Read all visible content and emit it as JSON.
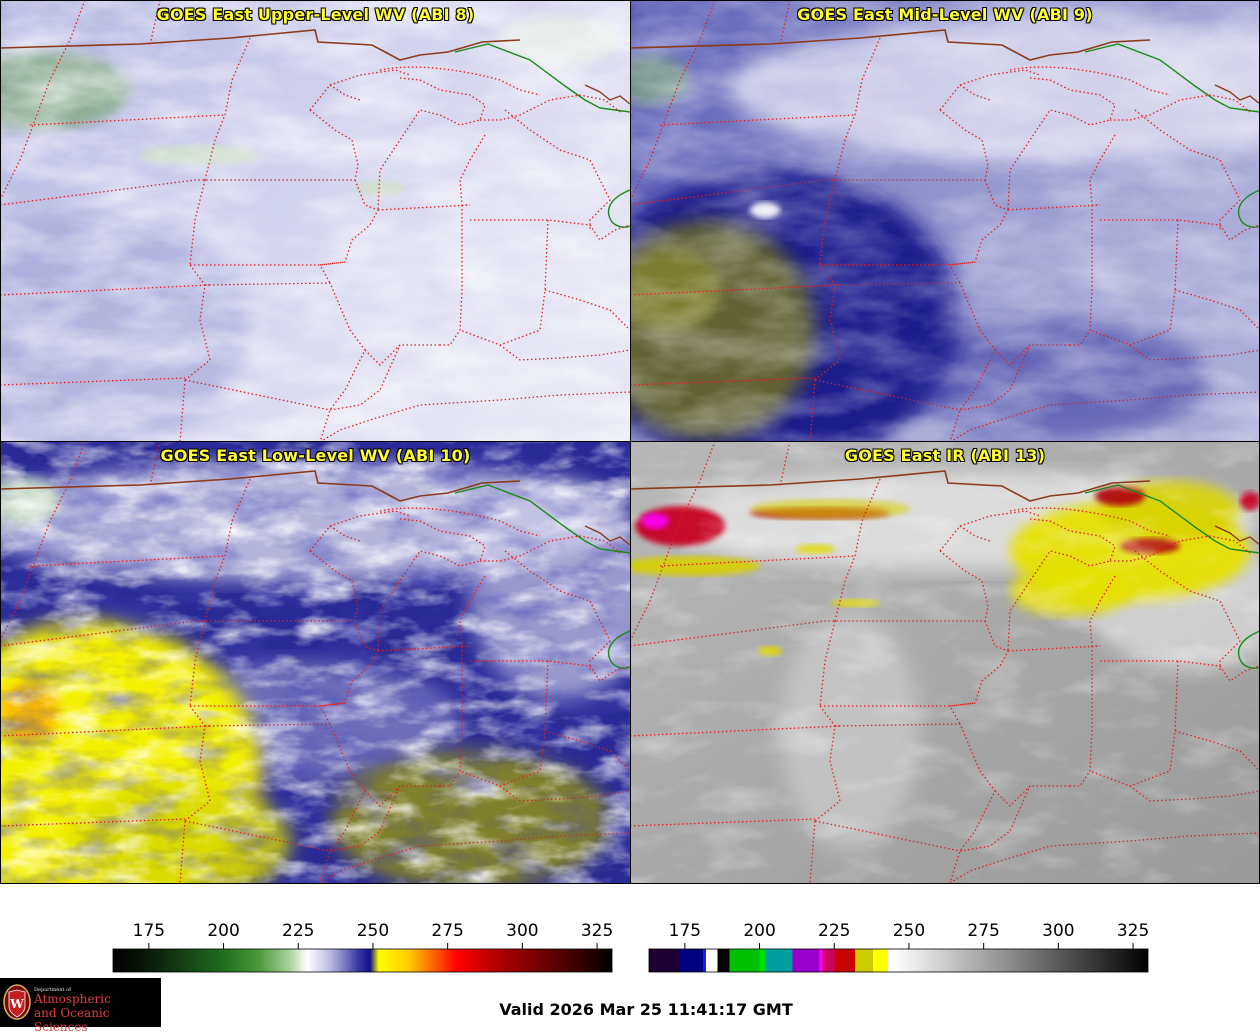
{
  "panels": [
    {
      "title": "GOES East Upper-Level WV (ABI 8)"
    },
    {
      "title": "GOES East Mid-Level WV (ABI 9)"
    },
    {
      "title": "GOES East Low-Level WV (ABI 10)"
    },
    {
      "title": "GOES East IR (ABI 13)"
    }
  ],
  "colorbars": {
    "wv": {
      "ticks": [
        "175",
        "200",
        "225",
        "250",
        "275",
        "300",
        "325"
      ],
      "range": [
        163,
        330
      ],
      "stops": [
        {
          "v": 163,
          "c": "#000000"
        },
        {
          "v": 175,
          "c": "#0a1a0a"
        },
        {
          "v": 200,
          "c": "#1f6e1f"
        },
        {
          "v": 212,
          "c": "#4e9a3c"
        },
        {
          "v": 222,
          "c": "#a9d09a"
        },
        {
          "v": 228,
          "c": "#ffffff"
        },
        {
          "v": 236,
          "c": "#b7b7e0"
        },
        {
          "v": 245,
          "c": "#3a3aa6"
        },
        {
          "v": 249,
          "c": "#10108a"
        },
        {
          "v": 252,
          "c": "#ffff00"
        },
        {
          "v": 262,
          "c": "#ffcc00"
        },
        {
          "v": 270,
          "c": "#ff6600"
        },
        {
          "v": 278,
          "c": "#ff0000"
        },
        {
          "v": 295,
          "c": "#a00000"
        },
        {
          "v": 315,
          "c": "#4a0000"
        },
        {
          "v": 330,
          "c": "#000000"
        }
      ]
    },
    "ir": {
      "ticks": [
        "175",
        "200",
        "225",
        "250",
        "275",
        "300",
        "325"
      ],
      "range": [
        163,
        330
      ],
      "bands": [
        {
          "from": 163,
          "to": 173,
          "c": "#1a0033"
        },
        {
          "from": 173,
          "to": 181,
          "c": "#000080"
        },
        {
          "from": 181,
          "to": 182,
          "c": "#1a1aff"
        },
        {
          "from": 182,
          "to": 186,
          "c": "#ffffff"
        },
        {
          "from": 186,
          "to": 190,
          "c": "#000000"
        },
        {
          "from": 190,
          "to": 200,
          "c": "#00c000"
        },
        {
          "from": 200,
          "to": 202,
          "c": "#00e000"
        },
        {
          "from": 202,
          "to": 211,
          "c": "#00a0a0"
        },
        {
          "from": 211,
          "to": 220,
          "c": "#9900cc"
        },
        {
          "from": 220,
          "to": 221,
          "c": "#ff00ff"
        },
        {
          "from": 221,
          "to": 225,
          "c": "#cc0066"
        },
        {
          "from": 225,
          "to": 232,
          "c": "#cc0000"
        },
        {
          "from": 232,
          "to": 238,
          "c": "#cccc00"
        },
        {
          "from": 238,
          "to": 243,
          "c": "#ffff00"
        },
        {
          "from": 243,
          "to": 245,
          "c": "#ffffff"
        }
      ],
      "gradient": [
        {
          "v": 245,
          "c": "#ffffff"
        },
        {
          "v": 330,
          "c": "#000000"
        }
      ]
    }
  },
  "logo": {
    "line1": "Department of",
    "line2": "Atmospheric",
    "line3": "and Oceanic Sciences"
  },
  "valid_text": "Valid 2026 Mar 25 11:41:17 GMT",
  "colors": {
    "title": "#ffff33",
    "state_border": "#e02020",
    "intl_border": "#8b3a1a",
    "shoreline": "#1a8a1a"
  }
}
